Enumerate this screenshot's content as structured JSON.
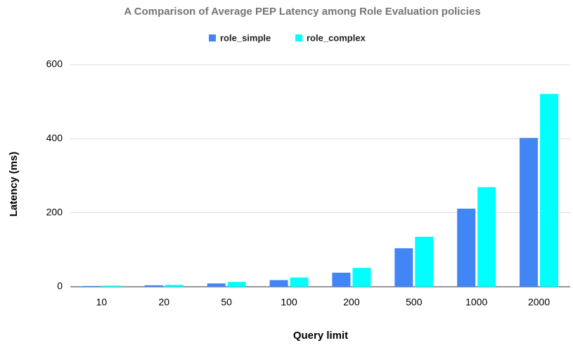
{
  "chart_data": {
    "type": "bar",
    "title": "A Comparison of Average PEP Latency among Role Evaluation policies",
    "x_label": "Query limit",
    "y_label": "Latency (ms)",
    "categories": [
      "10",
      "20",
      "50",
      "100",
      "200",
      "500",
      "1000",
      "2000"
    ],
    "series": [
      {
        "name": "role_simple",
        "color": "#4285f4",
        "values": [
          2,
          4,
          9,
          18,
          38,
          104,
          211,
          402
        ]
      },
      {
        "name": "role_complex",
        "color": "#00ffff",
        "values": [
          3,
          5,
          13,
          25,
          51,
          135,
          269,
          521
        ]
      }
    ],
    "ylim": [
      0,
      600
    ],
    "yticks": [
      0,
      200,
      400,
      600
    ],
    "grid": true,
    "legend": "top"
  }
}
